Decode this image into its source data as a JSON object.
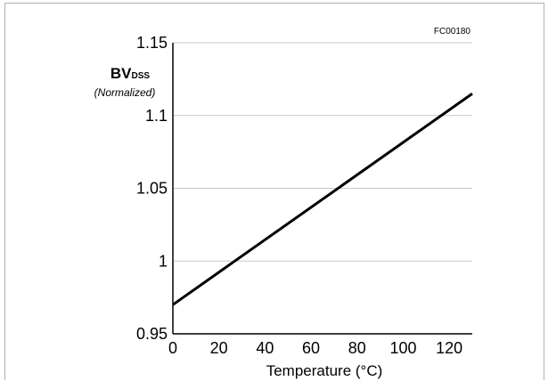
{
  "figure": {
    "code": "FC00180",
    "ylabel_main": "BV",
    "ylabel_sub": "DSS",
    "ylabel_note": "(Normalized)"
  },
  "chart_data": {
    "type": "line",
    "title": "",
    "xlabel": "Temperature (°C)",
    "ylabel": "BVDSS (Normalized)",
    "xlim": [
      0,
      130
    ],
    "ylim": [
      0.95,
      1.15
    ],
    "xticks": [
      0,
      20,
      40,
      60,
      80,
      100,
      120
    ],
    "xtick_labels": [
      "0",
      "20",
      "40",
      "60",
      "80",
      "100",
      "120"
    ],
    "yticks": [
      0.95,
      1,
      1.05,
      1.1,
      1.15
    ],
    "ytick_labels": [
      "0.95",
      "1",
      "1.05",
      "1.1",
      "1.15"
    ],
    "grid": "horizontal",
    "series": [
      {
        "x": [
          0,
          130
        ],
        "y": [
          0.97,
          1.115
        ]
      }
    ],
    "colors": {
      "line": "#000000",
      "grid": "#c8c8c8",
      "axis": "#000000"
    }
  }
}
